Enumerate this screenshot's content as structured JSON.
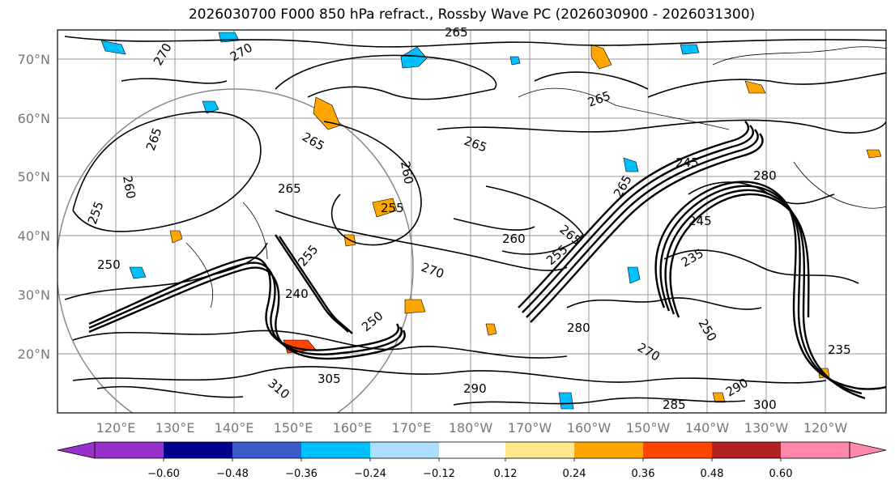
{
  "title": "2026030700 F000 850 hPa refract., Rossby Wave PC (2026030900 - 2026031300)",
  "lat_labels": [
    "70°N",
    "60°N",
    "50°N",
    "40°N",
    "30°N",
    "20°N"
  ],
  "lon_labels": [
    "120°E",
    "130°E",
    "140°E",
    "150°E",
    "160°E",
    "170°E",
    "180°W",
    "170°W",
    "160°W",
    "150°W",
    "140°W",
    "130°W",
    "120°W"
  ],
  "colorbar": {
    "colors": [
      "#9932CC",
      "#00008B",
      "#3A5BCC",
      "#00BFFF",
      "#ADDFFF",
      "#FFFFFF",
      "#FFE98A",
      "#FFA500",
      "#FF4500",
      "#B22222",
      "#FF88AA"
    ],
    "tick_labels": [
      "−0.60",
      "−0.48",
      "−0.36",
      "−0.24",
      "−0.12",
      "0.12",
      "0.24",
      "0.36",
      "0.48",
      "0.60"
    ]
  },
  "contour_labels": [
    "265",
    "270",
    "270",
    "265",
    "265",
    "265",
    "260",
    "265",
    "265",
    "255",
    "255",
    "265",
    "265",
    "260",
    "270",
    "255",
    "245",
    "245",
    "280",
    "235",
    "250",
    "235",
    "290",
    "300",
    "305",
    "310",
    "290",
    "285",
    "280",
    "270",
    "250",
    "260",
    "255",
    "240",
    "250"
  ],
  "shading_colors": {
    "blue": "#00BFFF",
    "light_blue": "#ADDFFF",
    "orange": "#FFA500",
    "light_orange": "#FFE98A",
    "red": "#FF4500"
  }
}
